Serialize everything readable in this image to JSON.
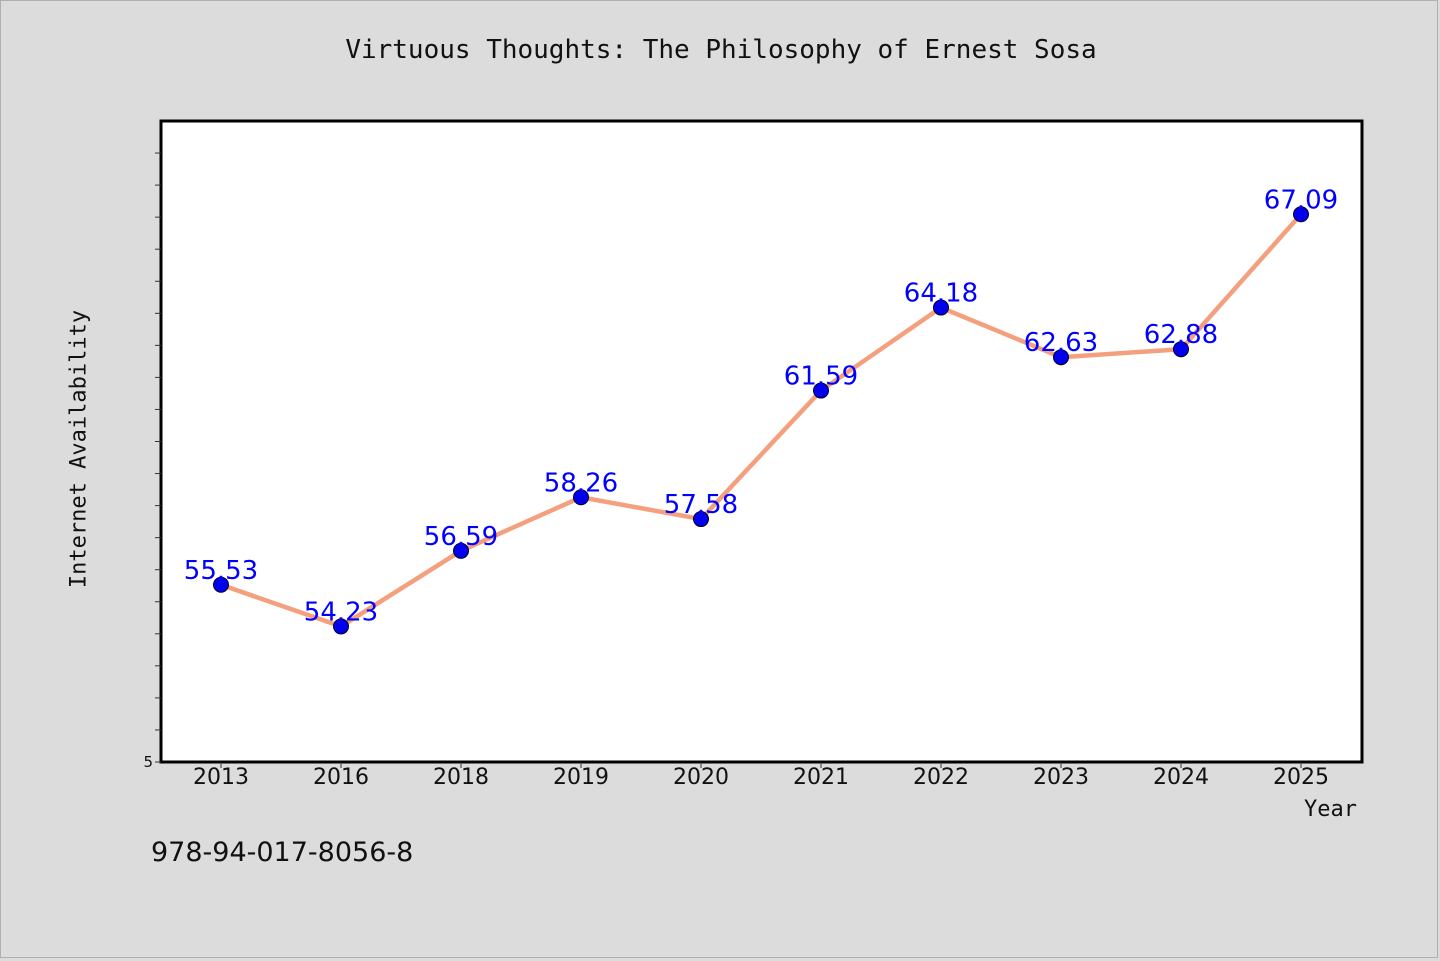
{
  "title": "Virtuous Thoughts: The Philosophy of Ernest Sosa",
  "footer_text": "978-94-017-8056-8",
  "colors": {
    "background": "#dcdcdc",
    "plot_background": "#ffffff",
    "line": "#f4a07e",
    "marker": "#0000ee",
    "label": "#0000ff"
  },
  "chart_data": {
    "type": "line",
    "title": "Virtuous Thoughts: The Philosophy of Ernest Sosa",
    "xlabel": "Year",
    "ylabel": "Internet Availability",
    "categories": [
      "2013",
      "2016",
      "2018",
      "2019",
      "2020",
      "2021",
      "2022",
      "2023",
      "2024",
      "2025"
    ],
    "series": [
      {
        "values": [
          55.53,
          54.23,
          56.59,
          58.26,
          57.58,
          61.59,
          64.18,
          62.63,
          62.88,
          67.09
        ],
        "labels": [
          "55.53",
          "54.23",
          "56.59",
          "58.26",
          "57.58",
          "61.59",
          "64.18",
          "62.63",
          "62.88",
          "67.09"
        ]
      }
    ],
    "ylim": [
      50,
      70
    ],
    "ytick_labels": [
      "5"
    ],
    "grid": false,
    "legend": "none"
  }
}
